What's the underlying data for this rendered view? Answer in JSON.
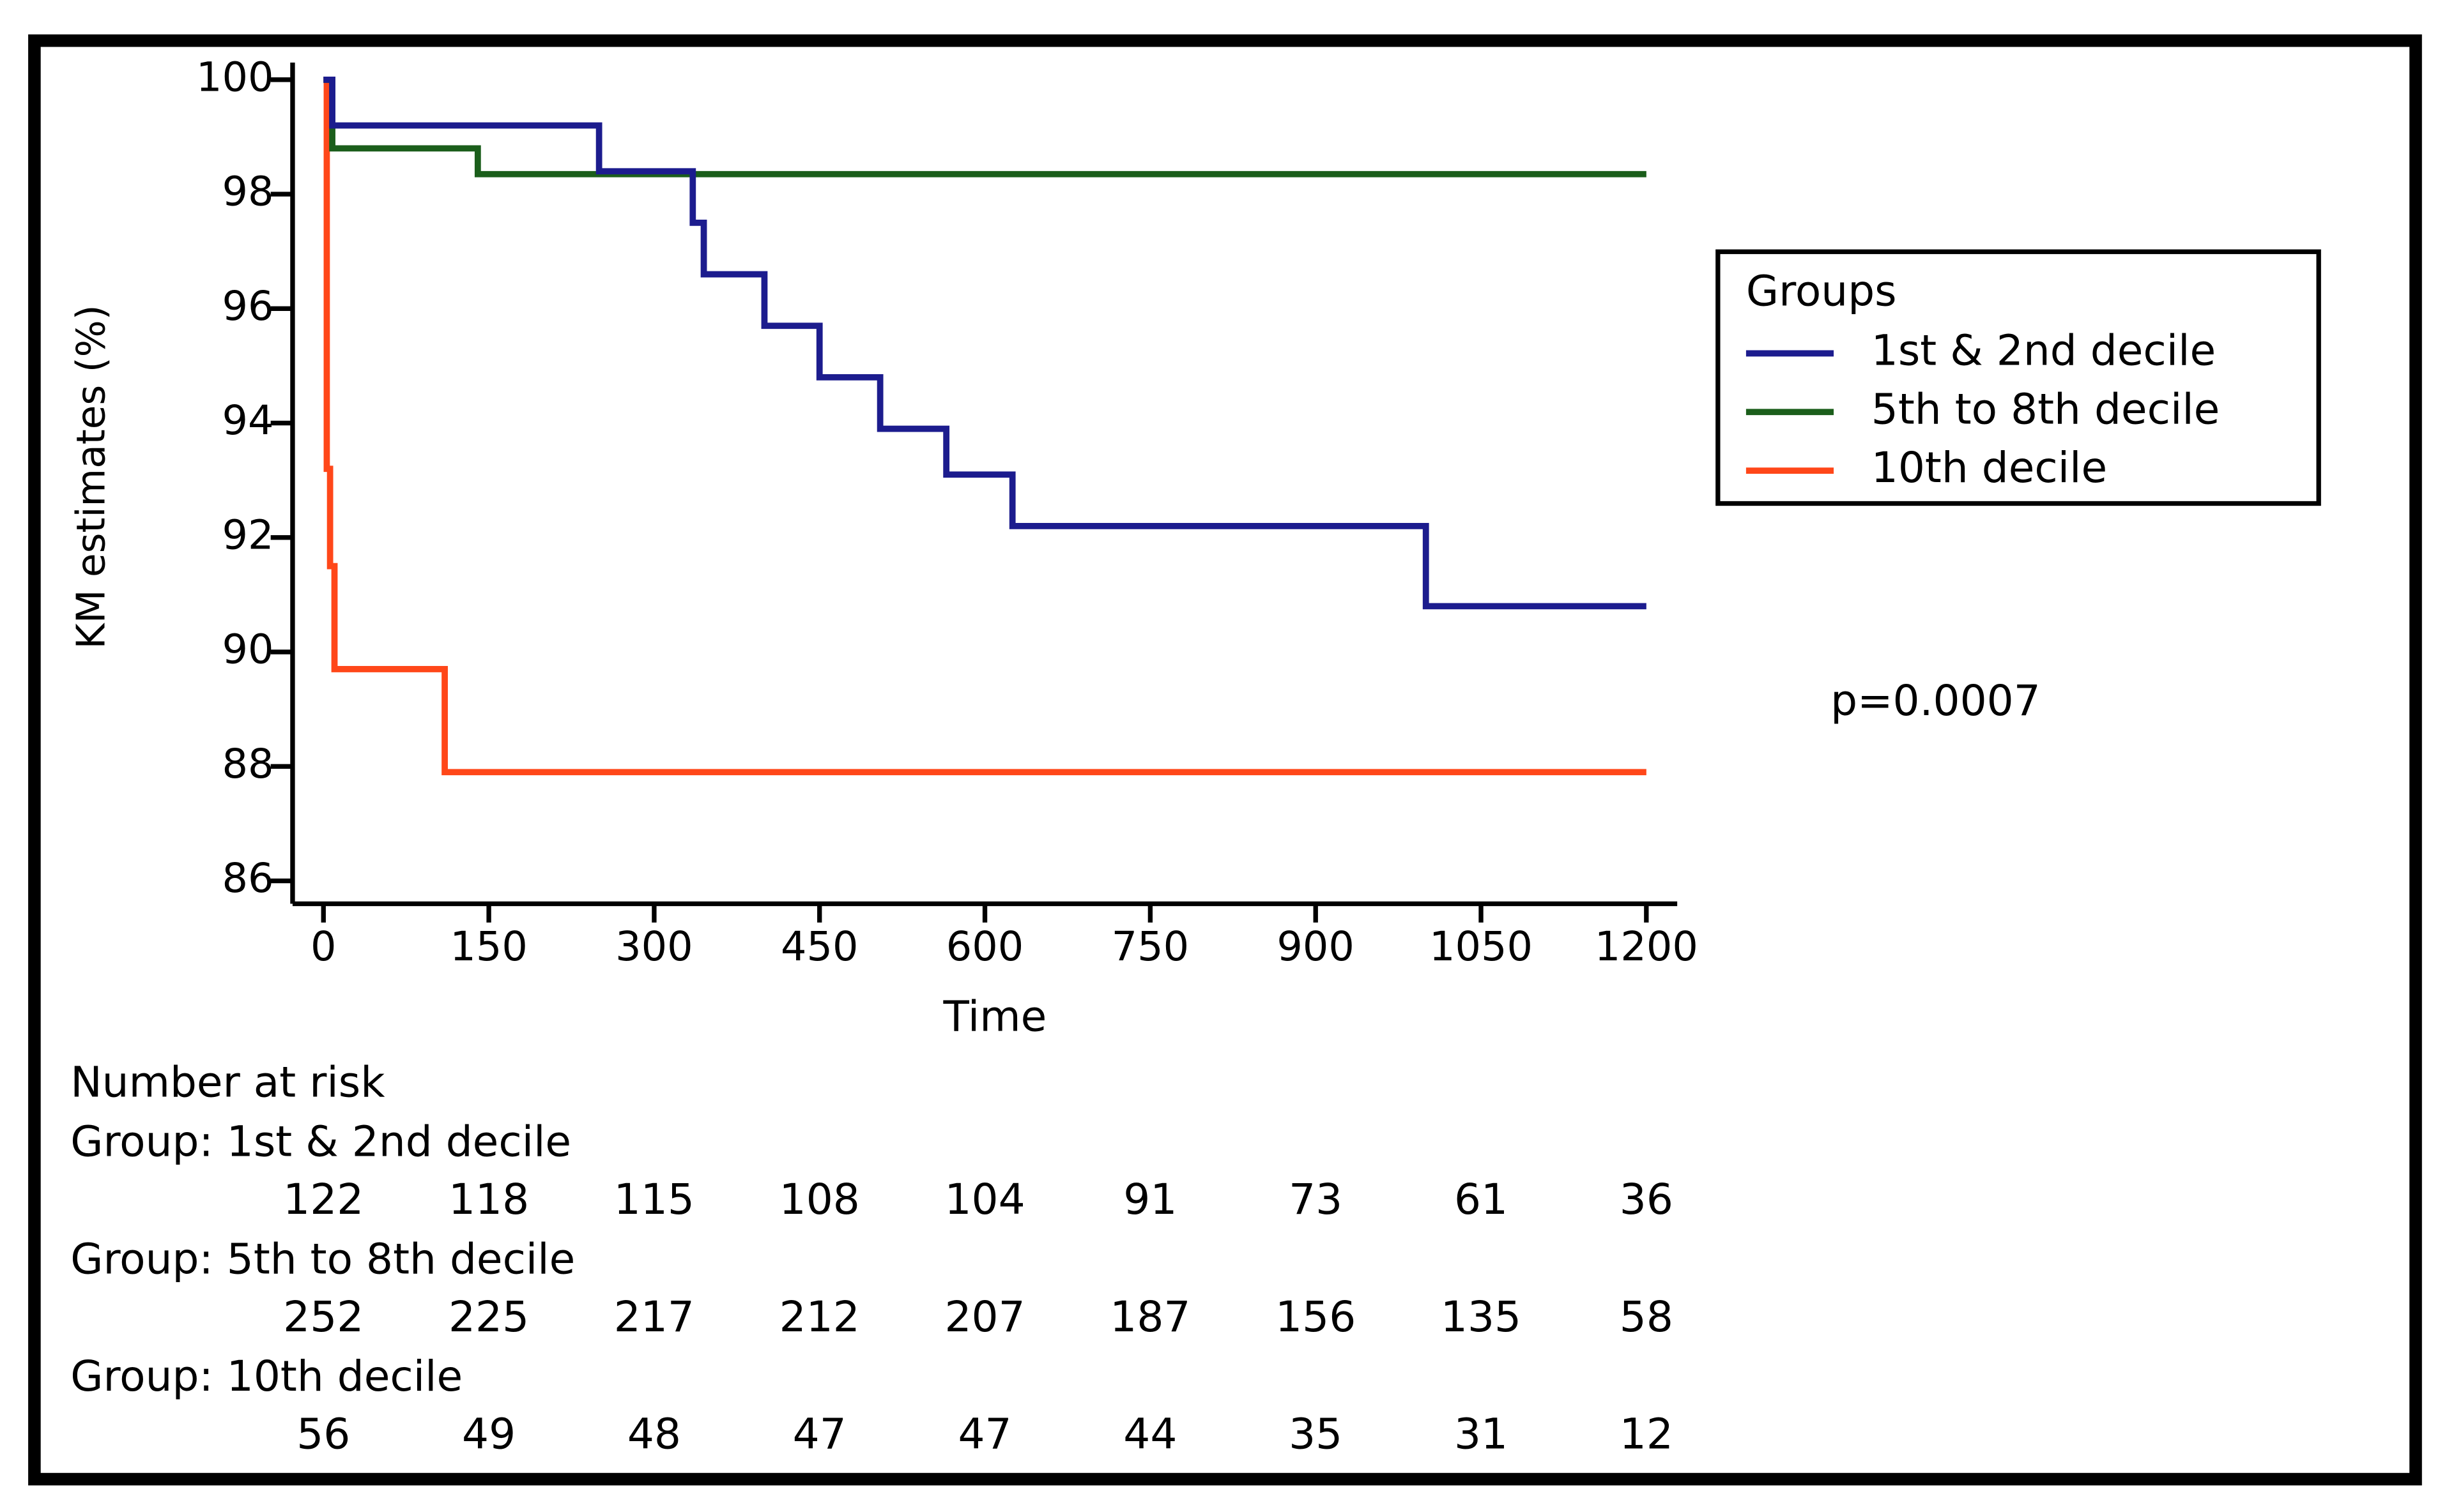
{
  "chart_data": {
    "type": "step",
    "xlabel": "Time",
    "ylabel": "KM estimates (%)",
    "xlim": [
      -28,
      1228
    ],
    "ylim": [
      85.6,
      100.3
    ],
    "xticks": [
      0,
      150,
      300,
      450,
      600,
      750,
      900,
      1050,
      1200
    ],
    "yticks": [
      86,
      88,
      90,
      92,
      94,
      96,
      98,
      100
    ],
    "legend_title": "Groups",
    "legend": "right",
    "annotation": "p=0.0007",
    "series": [
      {
        "name": "1st & 2nd decile",
        "color": "#1c1c8e",
        "x": [
          0,
          8,
          250,
          335,
          345,
          400,
          450,
          505,
          565,
          625,
          1000,
          1200
        ],
        "y": [
          100,
          99.2,
          98.4,
          97.5,
          96.6,
          95.7,
          94.8,
          93.9,
          93.1,
          92.2,
          90.8,
          90.8
        ]
      },
      {
        "name": "5th to 8th decile",
        "color": "#1b5e1b",
        "x": [
          0,
          8,
          140,
          1200
        ],
        "y": [
          100,
          98.8,
          98.35,
          98.35
        ]
      },
      {
        "name": "10th decile",
        "color": "#ff4719",
        "x": [
          0,
          3,
          6,
          10,
          110,
          1200
        ],
        "y": [
          100,
          93.2,
          91.5,
          89.7,
          87.9,
          87.9
        ]
      }
    ],
    "risk_table": {
      "title": "Number at risk",
      "groups": [
        {
          "label": "Group: 1st & 2nd decile",
          "values": [
            122,
            118,
            115,
            108,
            104,
            91,
            73,
            61,
            36
          ]
        },
        {
          "label": "Group: 5th to 8th decile",
          "values": [
            252,
            225,
            217,
            212,
            207,
            187,
            156,
            135,
            58
          ]
        },
        {
          "label": "Group: 10th decile",
          "values": [
            56,
            49,
            48,
            47,
            47,
            44,
            35,
            31,
            12
          ]
        }
      ]
    }
  }
}
